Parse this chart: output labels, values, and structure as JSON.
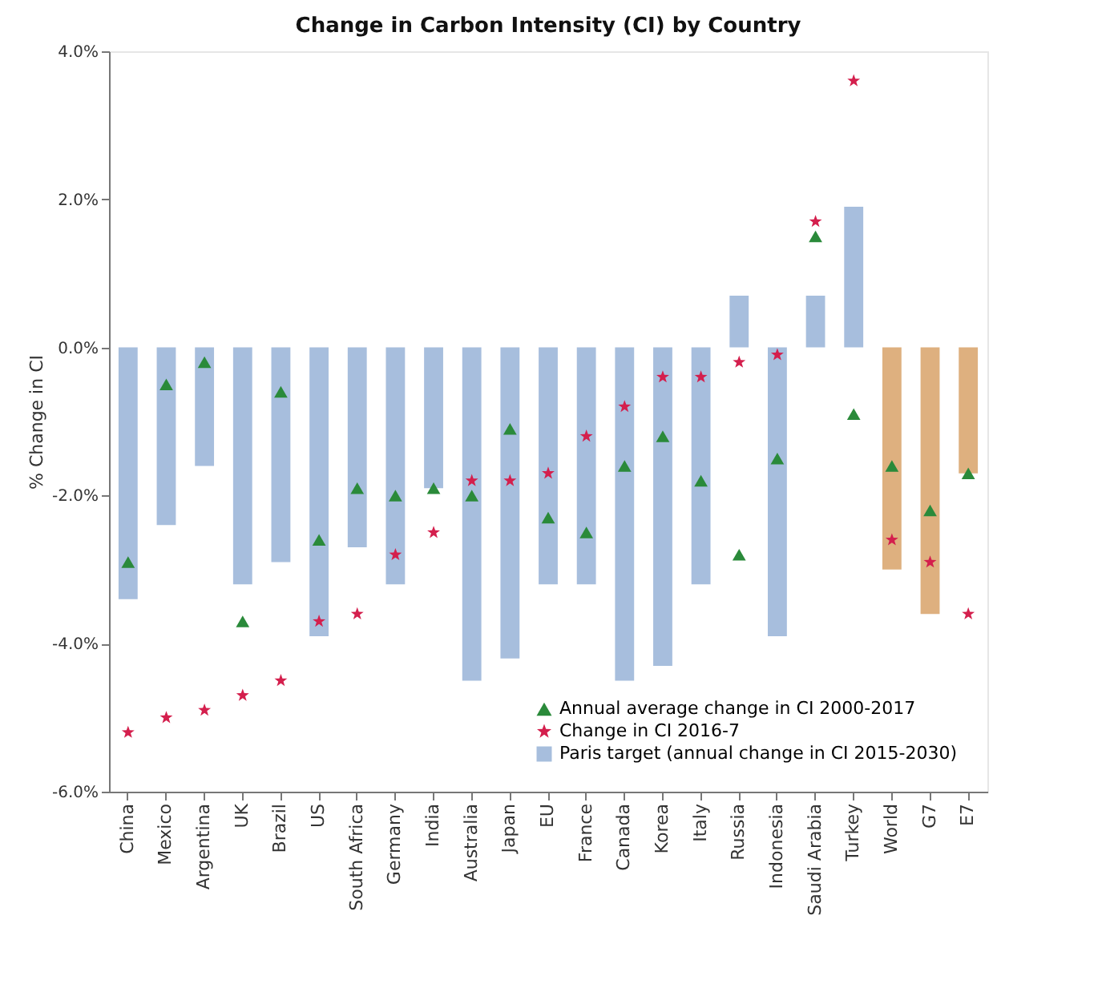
{
  "chart_data": {
    "type": "bar",
    "title": "Change in Carbon Intensity (CI) by Country",
    "ylabel": "% Change in CI",
    "categories": [
      "China",
      "Mexico",
      "Argentina",
      "UK",
      "Brazil",
      "US",
      "South Africa",
      "Germany",
      "India",
      "Australia",
      "Japan",
      "EU",
      "France",
      "Canada",
      "Korea",
      "Italy",
      "Russia",
      "Indonesia",
      "Saudi Arabia",
      "Turkey",
      "World",
      "G7",
      "E7"
    ],
    "series": [
      {
        "name": "Annual average change in CI 2000-2017",
        "type": "scatter",
        "marker": "triangle",
        "color": "#2a8a3a",
        "values": [
          -2.9,
          -0.5,
          -0.2,
          -3.7,
          -0.6,
          -2.6,
          -1.9,
          -2.0,
          -1.9,
          -2.0,
          -1.1,
          -2.3,
          -2.5,
          -1.6,
          -1.2,
          -1.8,
          -2.8,
          -1.5,
          1.5,
          -0.9,
          -1.6,
          -2.2,
          -1.7
        ]
      },
      {
        "name": "Change in CI 2016-7",
        "type": "scatter",
        "marker": "star",
        "color": "#d41f4d",
        "values": [
          -5.2,
          -5.0,
          -4.9,
          -4.7,
          -4.5,
          -3.7,
          -3.6,
          -2.8,
          -2.5,
          -1.8,
          -1.8,
          -1.7,
          -1.2,
          -0.8,
          -0.4,
          -0.4,
          -0.2,
          -0.1,
          1.7,
          3.6,
          -2.6,
          -2.9,
          -3.6
        ]
      },
      {
        "name": "Paris target (annual change in CI 2015-2030)",
        "type": "bar",
        "color": "#a7bedd",
        "colors": [
          "#a7bedd",
          "#a7bedd",
          "#a7bedd",
          "#a7bedd",
          "#a7bedd",
          "#a7bedd",
          "#a7bedd",
          "#a7bedd",
          "#a7bedd",
          "#a7bedd",
          "#a7bedd",
          "#a7bedd",
          "#a7bedd",
          "#a7bedd",
          "#a7bedd",
          "#a7bedd",
          "#a7bedd",
          "#a7bedd",
          "#a7bedd",
          "#a7bedd",
          "#deb07f",
          "#deb07f",
          "#deb07f"
        ],
        "values": [
          -3.4,
          -2.4,
          -1.6,
          -3.2,
          -2.9,
          -3.9,
          -2.7,
          -3.2,
          -1.9,
          -4.5,
          -4.2,
          -3.2,
          -3.2,
          -4.5,
          -4.3,
          -3.2,
          0.7,
          -3.9,
          0.7,
          1.9,
          -3.0,
          -3.6,
          -1.7
        ]
      }
    ],
    "ylim": [
      -6,
      4
    ],
    "yticks": [
      {
        "value": -6,
        "label": "-6.0%"
      },
      {
        "value": -4,
        "label": "-4.0%"
      },
      {
        "value": -2,
        "label": "-2.0%"
      },
      {
        "value": 0,
        "label": "0.0%"
      },
      {
        "value": 2,
        "label": "2.0%"
      },
      {
        "value": 4,
        "label": "4.0%"
      }
    ],
    "legend": "bottom right"
  }
}
